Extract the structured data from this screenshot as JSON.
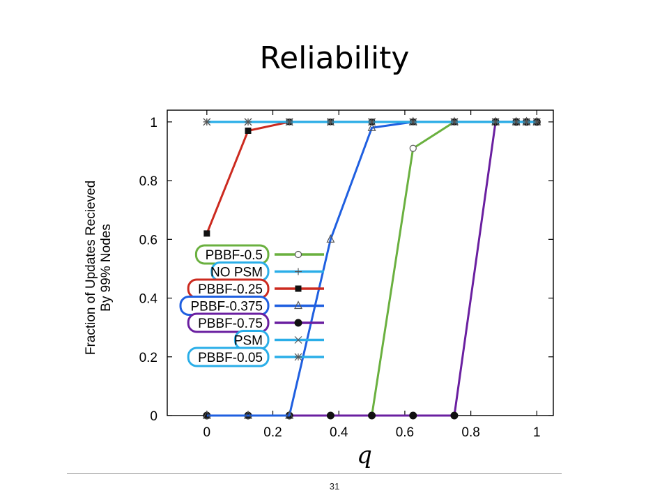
{
  "slide": {
    "title": "Reliability",
    "page_number": "31"
  },
  "chart_data": {
    "type": "line",
    "xlabel": "q",
    "ylabel": [
      "Fraction of Updates Recieved",
      "By 99% Nodes"
    ],
    "xlim": [
      -0.12,
      1.05
    ],
    "ylim": [
      0,
      1.04
    ],
    "x_ticks": [
      "0",
      "0.2",
      "0.4",
      "0.6",
      "0.8",
      "1"
    ],
    "x_tick_values": [
      0,
      0.2,
      0.4,
      0.6,
      0.8,
      1
    ],
    "y_ticks": [
      "0",
      "0.2",
      "0.4",
      "0.6",
      "0.8",
      "1"
    ],
    "y_tick_values": [
      0,
      0.2,
      0.4,
      0.6,
      0.8,
      1
    ],
    "grid": false,
    "legend_placement": "left-center",
    "series": [
      {
        "name": "PBBF-0.5",
        "color": "#6ab03f",
        "marker": "circle-open",
        "x": [
          0,
          0.125,
          0.25,
          0.375,
          0.5,
          0.625,
          0.75,
          0.875,
          0.9375,
          0.96875,
          1
        ],
        "y": [
          0,
          0,
          0,
          0,
          0,
          0.91,
          1,
          1,
          1,
          1,
          1
        ]
      },
      {
        "name": "NO PSM",
        "color": "#2aaee8",
        "marker": "plus",
        "x": [
          0,
          0.125,
          0.25,
          0.375,
          0.5,
          0.625,
          0.75,
          0.875,
          0.9375,
          0.96875,
          1
        ],
        "y": [
          1,
          1,
          1,
          1,
          1,
          1,
          1,
          1,
          1,
          1,
          1
        ]
      },
      {
        "name": "PBBF-0.25",
        "color": "#cc2a1f",
        "marker": "square-filled",
        "x": [
          0,
          0.125,
          0.25,
          0.375,
          0.5,
          0.625,
          0.75,
          0.875,
          0.9375,
          0.96875,
          1
        ],
        "y": [
          0.62,
          0.97,
          1,
          1,
          1,
          1,
          1,
          1,
          1,
          1,
          1
        ]
      },
      {
        "name": "PBBF-0.375",
        "color": "#1f5fe0",
        "marker": "triangle-open",
        "x": [
          0,
          0.125,
          0.25,
          0.375,
          0.5,
          0.625,
          0.75,
          0.875,
          0.9375,
          0.96875,
          1
        ],
        "y": [
          0,
          0,
          0,
          0.6,
          0.98,
          1,
          1,
          1,
          1,
          1,
          1
        ]
      },
      {
        "name": "PBBF-0.75",
        "color": "#6a1fa0",
        "marker": "circle-filled",
        "x": [
          0,
          0.125,
          0.25,
          0.375,
          0.5,
          0.625,
          0.75,
          0.875,
          0.9375,
          0.96875,
          1
        ],
        "y": [
          0,
          0,
          0,
          0,
          0,
          0,
          0,
          1,
          1,
          1,
          1
        ]
      },
      {
        "name": "PSM",
        "color": "#2aaee8",
        "marker": "cross",
        "x": [
          0,
          0.125,
          0.25,
          0.375,
          0.5,
          0.625,
          0.75,
          0.875,
          0.9375,
          0.96875,
          1
        ],
        "y": [
          1,
          1,
          1,
          1,
          1,
          1,
          1,
          1,
          1,
          1,
          1
        ]
      },
      {
        "name": "PBBF-0.05",
        "color": "#2aaee8",
        "marker": "star",
        "x": [
          0,
          0.125,
          0.25,
          0.375,
          0.5,
          0.625,
          0.75,
          0.875,
          0.9375,
          0.96875,
          1
        ],
        "y": [
          1,
          1,
          1,
          1,
          1,
          1,
          1,
          1,
          1,
          1,
          1
        ]
      }
    ]
  }
}
